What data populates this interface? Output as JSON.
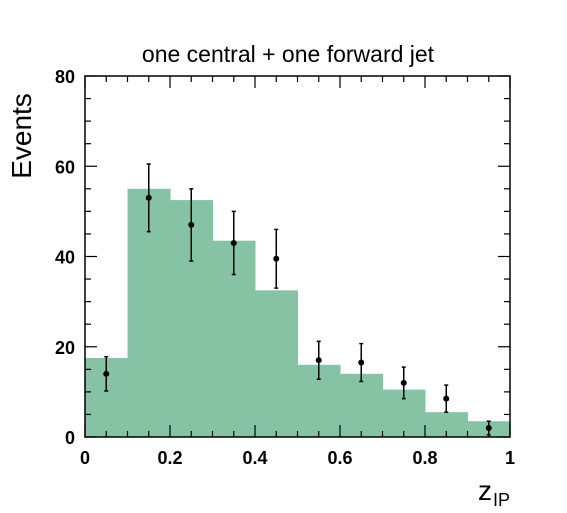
{
  "chart_data": {
    "type": "bar",
    "title": "one central + one forward jet",
    "ylabel": "Events",
    "xlabel_main": "z",
    "xlabel_sub": "IP",
    "xlim": [
      0,
      1
    ],
    "ylim": [
      0,
      80
    ],
    "x_ticks": [
      "0",
      "0.2",
      "0.4",
      "0.6",
      "0.8",
      "1"
    ],
    "y_ticks": [
      "0",
      "20",
      "40",
      "60",
      "80"
    ],
    "x_tick_values": [
      0,
      0.2,
      0.4,
      0.6,
      0.8,
      1
    ],
    "y_tick_values": [
      0,
      20,
      40,
      60,
      80
    ],
    "bin_edges": [
      0,
      0.1,
      0.2,
      0.3,
      0.4,
      0.5,
      0.6,
      0.7,
      0.8,
      0.9,
      1.0
    ],
    "histogram_values": [
      17.5,
      55,
      52.5,
      43.5,
      32.5,
      16,
      14,
      10.5,
      5.5,
      3.5
    ],
    "histogram_color": "#86c3a5",
    "points": {
      "x": [
        0.05,
        0.15,
        0.25,
        0.35,
        0.45,
        0.55,
        0.65,
        0.75,
        0.85,
        0.95
      ],
      "y": [
        14,
        53,
        47,
        43,
        39.5,
        17,
        16.5,
        12,
        8.5,
        2
      ],
      "err": [
        3.8,
        7.5,
        8,
        7,
        6.5,
        4.2,
        4.2,
        3.5,
        3,
        1.5
      ]
    },
    "grid": false,
    "legend": "none"
  }
}
